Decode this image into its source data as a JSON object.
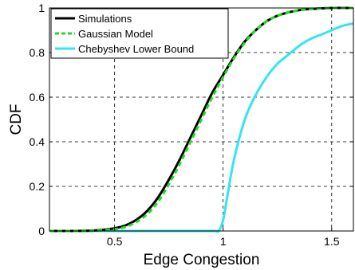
{
  "chart_data": {
    "type": "line",
    "xlabel": "Edge Congestion",
    "ylabel": "CDF",
    "xlim": [
      0.2,
      1.6
    ],
    "ylim": [
      0,
      1
    ],
    "xticks": [
      0.5,
      1,
      1.5
    ],
    "xtick_labels": [
      "0.5",
      "1",
      "1.5"
    ],
    "yticks": [
      0,
      0.2,
      0.4,
      0.6,
      0.8,
      1
    ],
    "ytick_labels": [
      "0",
      "0.2",
      "0.4",
      "0.6",
      "0.8",
      "1"
    ],
    "grid": true,
    "legend_position": "top-left",
    "series": [
      {
        "name": "Simulations",
        "color": "#000000",
        "style": "solid",
        "x": [
          0.2,
          0.4,
          0.5,
          0.55,
          0.6,
          0.65,
          0.7,
          0.75,
          0.8,
          0.85,
          0.9,
          0.95,
          1.0,
          1.05,
          1.1,
          1.15,
          1.2,
          1.25,
          1.3,
          1.35,
          1.4,
          1.5,
          1.6
        ],
        "y": [
          0.0,
          0.002,
          0.012,
          0.025,
          0.05,
          0.09,
          0.15,
          0.23,
          0.32,
          0.42,
          0.52,
          0.62,
          0.7,
          0.78,
          0.85,
          0.9,
          0.94,
          0.965,
          0.98,
          0.99,
          0.995,
          1.0,
          1.0
        ]
      },
      {
        "name": "Gaussian Model",
        "color": "#22dd22",
        "style": "dashed",
        "x": [
          0.2,
          0.4,
          0.5,
          0.55,
          0.6,
          0.65,
          0.7,
          0.75,
          0.8,
          0.85,
          0.9,
          0.95,
          1.0,
          1.05,
          1.1,
          1.15,
          1.2,
          1.25,
          1.3,
          1.35,
          1.4,
          1.5,
          1.6
        ],
        "y": [
          0.0,
          0.001,
          0.008,
          0.018,
          0.04,
          0.075,
          0.13,
          0.21,
          0.3,
          0.4,
          0.5,
          0.6,
          0.69,
          0.775,
          0.845,
          0.9,
          0.94,
          0.965,
          0.98,
          0.99,
          0.995,
          1.0,
          1.0
        ]
      },
      {
        "name": "Chebyshev Lower Bound",
        "color": "#33e5f0",
        "style": "solid",
        "x": [
          0.2,
          0.9,
          0.96,
          0.98,
          1.0,
          1.02,
          1.05,
          1.1,
          1.15,
          1.2,
          1.25,
          1.3,
          1.35,
          1.4,
          1.45,
          1.5,
          1.55,
          1.6
        ],
        "y": [
          0.0,
          0.0,
          0.0,
          0.0,
          0.05,
          0.16,
          0.32,
          0.5,
          0.61,
          0.69,
          0.75,
          0.79,
          0.83,
          0.86,
          0.88,
          0.9,
          0.92,
          0.93
        ]
      }
    ]
  }
}
